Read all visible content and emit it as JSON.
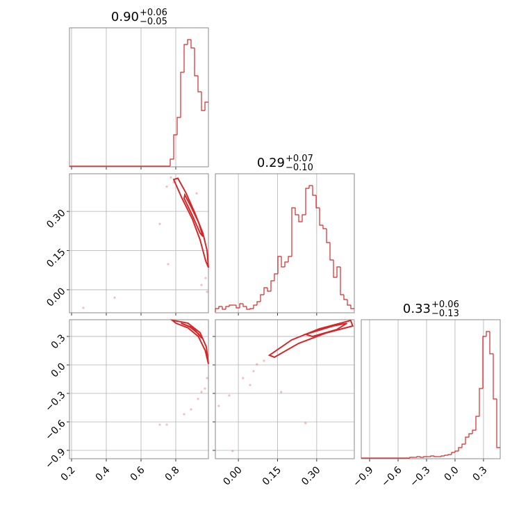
{
  "chart_data": {
    "type": "corner",
    "color": "#d62728",
    "grid": true,
    "parameters": [
      {
        "title": {
          "value": "0.90",
          "upper": "+0.06",
          "lower": "−0.05"
        },
        "lim": [
          0.188,
          0.988
        ],
        "ticks": [
          0.2,
          0.4,
          0.6,
          0.8
        ],
        "bins": [
          0.188,
          0.208,
          0.228,
          0.248,
          0.268,
          0.288,
          0.308,
          0.328,
          0.348,
          0.368,
          0.388,
          0.408,
          0.428,
          0.448,
          0.468,
          0.488,
          0.508,
          0.528,
          0.548,
          0.568,
          0.588,
          0.608,
          0.628,
          0.648,
          0.668,
          0.688,
          0.708,
          0.728,
          0.748,
          0.768,
          0.788,
          0.808,
          0.828,
          0.848,
          0.868,
          0.888,
          0.908,
          0.928,
          0.948,
          0.968,
          0.988
        ],
        "counts": [
          0,
          0,
          0,
          0,
          0,
          0,
          0,
          0,
          0,
          0,
          0,
          0,
          0,
          0,
          0,
          0,
          0,
          0,
          0,
          0,
          0,
          0,
          0,
          0,
          0,
          0,
          0,
          0,
          0,
          10,
          45,
          70,
          135,
          175,
          182,
          170,
          130,
          107,
          80,
          92
        ]
      },
      {
        "title": {
          "value": "0.29",
          "upper": "+0.07",
          "lower": "−0.10"
        },
        "lim": [
          -0.088,
          0.444
        ],
        "ticks": [
          {
            "value": 0,
            "label": "0.00"
          },
          0.15,
          {
            "value": 0.3,
            "label": "0.30"
          }
        ],
        "bins": [
          -0.088,
          -0.0747,
          -0.0614,
          -0.0481,
          -0.0348,
          -0.0215,
          -0.0082,
          0.0051,
          0.0184,
          0.0317,
          0.045,
          0.0583,
          0.0716,
          0.0849,
          0.0982,
          0.1115,
          0.1248,
          0.1381,
          0.1514,
          0.1647,
          0.178,
          0.1913,
          0.2046,
          0.2179,
          0.2312,
          0.2445,
          0.2578,
          0.2711,
          0.2844,
          0.2977,
          0.311,
          0.3243,
          0.3376,
          0.3509,
          0.3642,
          0.3775,
          0.3908,
          0.4041,
          0.4174,
          0.4307,
          0.444
        ],
        "counts": [
          5,
          8,
          4,
          8,
          10,
          10,
          6,
          12,
          8,
          4,
          5,
          10,
          15,
          25,
          35,
          30,
          45,
          55,
          80,
          65,
          72,
          80,
          150,
          140,
          130,
          140,
          178,
          182,
          168,
          150,
          125,
          120,
          100,
          75,
          50,
          65,
          25,
          18,
          10,
          5
        ]
      },
      {
        "title": {
          "value": "0.33",
          "upper": "+0.06",
          "lower": "−0.13"
        },
        "lim": [
          -0.988,
          0.476
        ],
        "ticks": [
          {
            "value": -0.9,
            "label": "−0.9"
          },
          {
            "value": -0.6,
            "label": "−0.6"
          },
          {
            "value": -0.3,
            "label": "−0.3"
          },
          {
            "value": 0,
            "label": "0.0"
          },
          0.3
        ],
        "bins": [
          -0.988,
          -0.9514,
          -0.9148,
          -0.8782,
          -0.8416,
          -0.805,
          -0.7684,
          -0.7318,
          -0.6952,
          -0.6586,
          -0.622,
          -0.5854,
          -0.5488,
          -0.5122,
          -0.4756,
          -0.439,
          -0.4024,
          -0.3658,
          -0.3292,
          -0.2926,
          -0.256,
          -0.2194,
          -0.1828,
          -0.1462,
          -0.1096,
          -0.073,
          -0.0364,
          0.0002,
          0.0368,
          0.0734,
          0.11,
          0.1466,
          0.1832,
          0.2198,
          0.2564,
          0.293,
          0.3296,
          0.3662,
          0.4028,
          0.4394,
          0.476
        ],
        "counts": [
          0,
          0,
          0,
          0,
          0,
          0,
          0,
          0,
          0,
          0,
          0,
          0,
          0,
          0,
          1,
          1,
          2,
          1,
          2,
          2,
          3,
          2,
          2,
          3,
          4,
          5,
          8,
          10,
          15,
          20,
          30,
          35,
          40,
          60,
          100,
          175,
          182,
          150,
          85,
          15
        ]
      }
    ],
    "pairs": [
      {
        "contours": [
          {
            "x": [
              0.788,
              0.836,
              0.896,
              0.94,
              0.972,
              0.988,
              0.98,
              0.956,
              0.908,
              0.86,
              0.812
            ],
            "y": [
              0.422,
              0.35,
              0.27,
              0.191,
              0.111,
              0.085,
              0.151,
              0.217,
              0.297,
              0.369,
              0.427
            ]
          },
          {
            "x": [
              0.848,
              0.9,
              0.94,
              0.956,
              0.932,
              0.884,
              0.852
            ],
            "y": [
              0.35,
              0.278,
              0.217,
              0.204,
              0.257,
              0.323,
              0.363
            ]
          }
        ],
        "points": {
          "x": [
            0.772,
            0.788,
            0.748,
            0.756,
            0.448,
            0.268,
            0.708,
            0.92,
            0.972,
            0.98,
            0.948
          ],
          "y": [
            0.43,
            0.411,
            0.395,
            0.098,
            -0.03,
            -0.069,
            0.252,
            0.369,
            0.045,
            -0.008,
            0.018
          ]
        }
      },
      {
        "contours": [
          {
            "x": [
              0.78,
              0.87,
              0.94,
              0.976,
              0.988,
              0.97,
              0.93,
              0.87,
              0.8
            ],
            "y": [
              0.47,
              0.44,
              0.34,
              0.19,
              0.01,
              0.15,
              0.3,
              0.39,
              0.44
            ]
          },
          {
            "x": [
              0.83,
              0.9,
              0.95,
              0.93,
              0.88
            ],
            "y": [
              0.44,
              0.39,
              0.28,
              0.33,
              0.4
            ]
          }
        ],
        "points": {
          "x": [
            0.968,
            0.928,
            0.888,
            0.848,
            0.748,
            0.708,
            0.98,
            0.948
          ],
          "y": [
            -0.249,
            -0.358,
            -0.468,
            -0.519,
            -0.629,
            -0.629,
            -0.139,
            -0.285
          ]
        }
      },
      {
        "contours": [
          {
            "x": [
              0.119,
              0.204,
              0.31,
              0.43,
              0.438,
              0.337,
              0.231,
              0.138
            ],
            "y": [
              0.102,
              0.263,
              0.38,
              0.468,
              0.41,
              0.337,
              0.227,
              0.081
            ]
          },
          {
            "x": [
              0.257,
              0.363,
              0.416,
              0.377,
              0.284
            ],
            "y": [
              0.322,
              0.41,
              0.439,
              0.373,
              0.3
            ]
          }
        ],
        "points": {
          "x": [
            0.071,
            0.018,
            -0.035,
            -0.075,
            0.098,
            0.058,
            0.164,
            0.257,
            -0.022,
            0.045
          ],
          "y": [
            0.007,
            -0.139,
            -0.322,
            -0.432,
            0.044,
            -0.066,
            -0.285,
            -0.614,
            -0.907,
            -0.212
          ]
        }
      }
    ]
  }
}
